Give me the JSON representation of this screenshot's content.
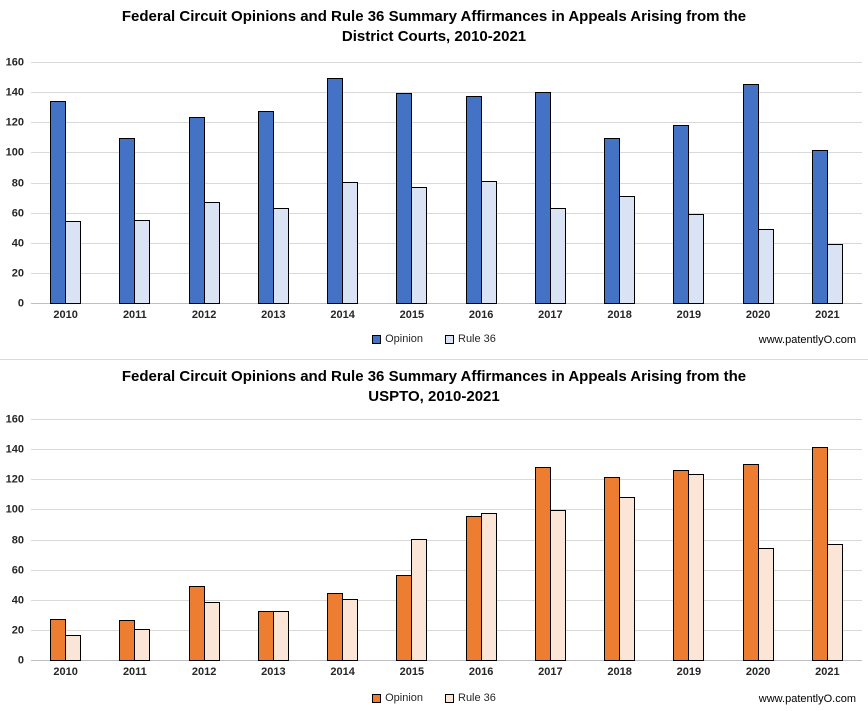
{
  "watermark": "www.patentlyO.com",
  "legend": {
    "opinion_label": "Opinion",
    "rule36_label": "Rule 36"
  },
  "colors": {
    "opinion_blue": "#4472C4",
    "rule36_light_blue": "#DAE3F3",
    "opinion_orange": "#ED7D31",
    "rule36_light_orange": "#FBE5D6",
    "gridline": "#D9D9D9",
    "axis_line": "#BFBFBF"
  },
  "chart_data": [
    {
      "type": "bar",
      "title_line1": "Federal Circuit Opinions and Rule 36 Summary Affirmances in Appeals Arising from the",
      "title_line2": "District Courts, 2010-2021",
      "categories": [
        "2010",
        "2011",
        "2012",
        "2013",
        "2014",
        "2015",
        "2016",
        "2017",
        "2018",
        "2019",
        "2020",
        "2021"
      ],
      "series": [
        {
          "name": "Opinion",
          "color": "#4472C4",
          "values": [
            135,
            110,
            124,
            128,
            150,
            140,
            138,
            141,
            110,
            119,
            146,
            102
          ]
        },
        {
          "name": "Rule 36",
          "color": "#DAE3F3",
          "values": [
            55,
            56,
            68,
            64,
            81,
            78,
            82,
            64,
            72,
            60,
            50,
            40
          ]
        }
      ],
      "xlabel": "",
      "ylabel": "",
      "ylim": [
        0,
        160
      ],
      "ytick_step": 20,
      "grid": true,
      "legend_position": "bottom"
    },
    {
      "type": "bar",
      "title_line1": "Federal Circuit Opinions and Rule 36 Summary Affirmances in Appeals Arising from the",
      "title_line2": "USPTO, 2010-2021",
      "categories": [
        "2010",
        "2011",
        "2012",
        "2013",
        "2014",
        "2015",
        "2016",
        "2017",
        "2018",
        "2019",
        "2020",
        "2021"
      ],
      "series": [
        {
          "name": "Opinion",
          "color": "#ED7D31",
          "values": [
            28,
            27,
            50,
            33,
            45,
            57,
            96,
            129,
            122,
            127,
            131,
            142
          ]
        },
        {
          "name": "Rule 36",
          "color": "#FBE5D6",
          "values": [
            17,
            21,
            39,
            33,
            41,
            81,
            98,
            100,
            109,
            124,
            75,
            78
          ]
        }
      ],
      "xlabel": "",
      "ylabel": "",
      "ylim": [
        0,
        160
      ],
      "ytick_step": 20,
      "grid": true,
      "legend_position": "bottom"
    }
  ]
}
